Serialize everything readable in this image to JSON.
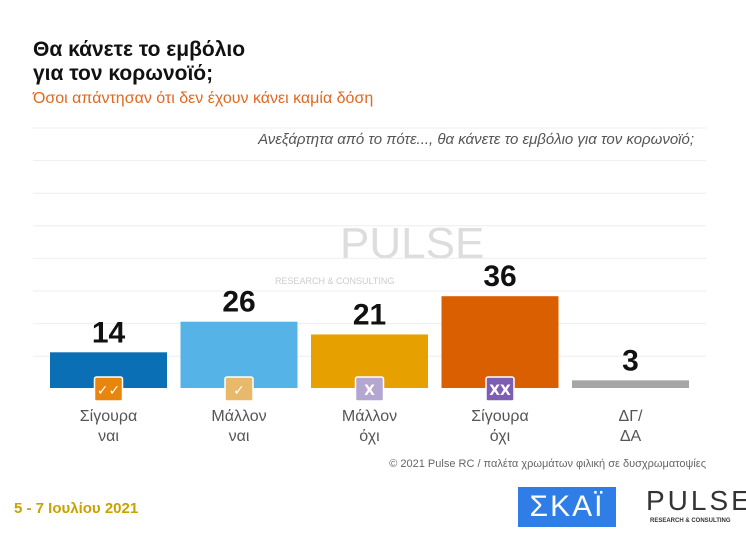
{
  "header": {
    "title_line1": "Θα κάνετε το εμβόλιο",
    "title_line2": "για τον κορωνοϊό;",
    "subtitle": "Όσοι απάντησαν ότι δεν έχουν κάνει καμία δόση"
  },
  "chart_data": {
    "type": "bar",
    "question": "Ανεξάρτητα από το πότε..., θα κάνετε το εμβόλιο για τον κορωνοϊό;",
    "categories": [
      [
        "Σίγουρα",
        "ναι"
      ],
      [
        "Μάλλον",
        "ναι"
      ],
      [
        "Μάλλον",
        "όχι"
      ],
      [
        "Σίγουρα",
        "όχι"
      ],
      [
        "ΔΓ/",
        "ΔΑ"
      ]
    ],
    "values": [
      14,
      26,
      21,
      36,
      3
    ],
    "colors": [
      "#0a6fb4",
      "#55b3e8",
      "#e6a100",
      "#d95f00",
      "#a6a6a6"
    ],
    "badges": [
      {
        "symbol": "✓✓",
        "color": "#e8850c"
      },
      {
        "symbol": "✓",
        "color": "#e8b96a"
      },
      {
        "symbol": "X",
        "color": "#b3a6d0"
      },
      {
        "symbol": "XX",
        "color": "#7e5eb5"
      },
      null
    ],
    "grid": true
  },
  "watermark": {
    "brand": "PULSE",
    "tagline": "RESEARCH & CONSULTING"
  },
  "footer": {
    "note": "© 2021 Pulse RC  /  παλέτα χρωμάτων φιλική σε δυσχρωματοψίες",
    "date": "5 - 7  Ιουλίου  2021",
    "skai_logo": "ΣΚΑΪ",
    "pulse_logo": "PULSE",
    "pulse_tagline": "RESEARCH & CONSULTING"
  }
}
